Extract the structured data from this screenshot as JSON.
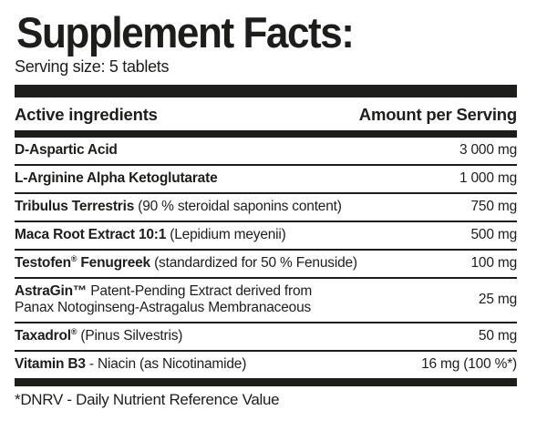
{
  "header": {
    "title": "Supplement Facts:",
    "serving_size": "Serving size: 5 tablets"
  },
  "table": {
    "col_ingredients": "Active ingredients",
    "col_amount": "Amount per Serving",
    "rows": [
      {
        "name_bold": "D-Aspartic Acid",
        "name_sup": "",
        "name_bold2": "",
        "name_regular": "",
        "name_line2": "",
        "amount": "3 000 mg"
      },
      {
        "name_bold": "L-Arginine Alpha Ketoglutarate",
        "name_sup": "",
        "name_bold2": "",
        "name_regular": "",
        "name_line2": "",
        "amount": "1 000 mg"
      },
      {
        "name_bold": "Tribulus Terrestris",
        "name_sup": "",
        "name_bold2": "",
        "name_regular": " (90 % steroidal saponins content)",
        "name_line2": "",
        "amount": "750 mg"
      },
      {
        "name_bold": "Maca Root Extract 10:1",
        "name_sup": "",
        "name_bold2": "",
        "name_regular": " (Lepidium meyenii)",
        "name_line2": "",
        "amount": "500 mg"
      },
      {
        "name_bold": "Testofen",
        "name_sup": "®",
        "name_bold2": " Fenugreek",
        "name_regular": " (standardized for 50 % Fenuside)",
        "name_line2": "",
        "amount": "100 mg"
      },
      {
        "name_bold": "AstraGin™",
        "name_sup": "",
        "name_bold2": "",
        "name_regular": " Patent-Pending Extract derived from",
        "name_line2": "Panax Notoginseng-Astragalus Membranaceous",
        "amount": "25 mg"
      },
      {
        "name_bold": "Taxadrol",
        "name_sup": "®",
        "name_bold2": "",
        "name_regular": " (Pinus Silvestris)",
        "name_line2": "",
        "amount": "50 mg"
      },
      {
        "name_bold": "Vitamin B3",
        "name_sup": "",
        "name_bold2": "",
        "name_regular": " - Niacin (as Nicotinamide)",
        "name_line2": "",
        "amount": "16 mg (100 %*)"
      }
    ]
  },
  "footer": {
    "note": "*DNRV - Daily Nutrient Reference Value"
  },
  "colors": {
    "ink": "#1d1d1b",
    "background": "#ffffff"
  }
}
